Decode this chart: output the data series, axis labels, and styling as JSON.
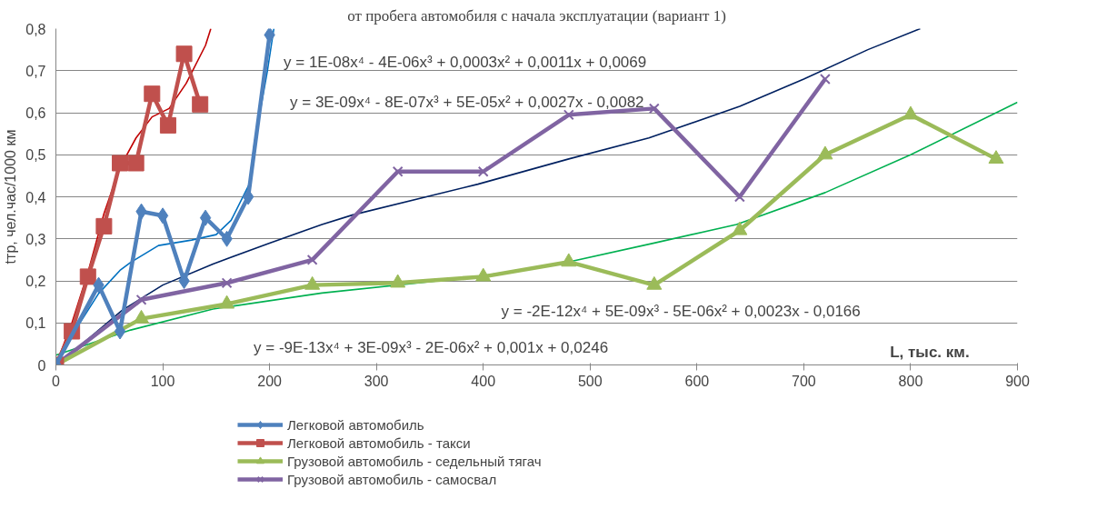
{
  "chart_data": {
    "type": "line",
    "title": "от пробега автомобиля с начала эксплуатации (вариант 1)",
    "xlabel": "L, тыс. км.",
    "ylabel": "tтр, чел.час/1000 км",
    "xlim": [
      0,
      900
    ],
    "xticks": [
      0,
      100,
      200,
      300,
      400,
      500,
      600,
      700,
      800,
      900
    ],
    "ylim": [
      0,
      0.8
    ],
    "yticks": [
      {
        "value": 0,
        "label": "0"
      },
      {
        "value": 0.1,
        "label": "0,1"
      },
      {
        "value": 0.2,
        "label": "0,2"
      },
      {
        "value": 0.3,
        "label": "0,3"
      },
      {
        "value": 0.4,
        "label": "0,4"
      },
      {
        "value": 0.5,
        "label": "0,5"
      },
      {
        "value": 0.6,
        "label": "0,6"
      },
      {
        "value": 0.7,
        "label": "0,7"
      },
      {
        "value": 0.8,
        "label": "0,8"
      }
    ],
    "grid": "y",
    "legend": "bottom",
    "series": [
      {
        "name": "Легковой автомобиль",
        "color": "#4f81bd",
        "marker": "diamond",
        "x": [
          0,
          40,
          60,
          80,
          100,
          120,
          140,
          160,
          180,
          200
        ],
        "values": [
          0,
          0.19,
          0.08,
          0.365,
          0.355,
          0.2,
          0.35,
          0.3,
          0.4,
          0.785
        ]
      },
      {
        "name": "Легковой автомобиль - такси",
        "color": "#c0504d",
        "marker": "square",
        "x": [
          0,
          15,
          30,
          45,
          60,
          75,
          90,
          105,
          120,
          135
        ],
        "values": [
          0,
          0.08,
          0.21,
          0.33,
          0.48,
          0.48,
          0.645,
          0.57,
          0.74,
          0.62
        ]
      },
      {
        "name": "Грузовой автомобиль - седельный тягач",
        "color": "#9bbb59",
        "marker": "triangle",
        "x": [
          0,
          80,
          160,
          240,
          320,
          400,
          480,
          560,
          640,
          720,
          800,
          880
        ],
        "values": [
          0,
          0.11,
          0.145,
          0.19,
          0.195,
          0.21,
          0.245,
          0.19,
          0.32,
          0.5,
          0.595,
          0.49
        ]
      },
      {
        "name": "Грузовой автомобиль - самосвал",
        "color": "#8064a2",
        "marker": "cross",
        "x": [
          0,
          80,
          160,
          240,
          320,
          400,
          480,
          560,
          640,
          720
        ],
        "values": [
          0,
          0.155,
          0.195,
          0.25,
          0.46,
          0.46,
          0.595,
          0.61,
          0.4,
          0.68
        ]
      },
      {
        "color": "#c00000",
        "marker": "none",
        "x": [
          0,
          15,
          30,
          45,
          60,
          75,
          90,
          106,
          122,
          140,
          145
        ],
        "values": [
          0,
          0.1,
          0.22,
          0.36,
          0.47,
          0.54,
          0.59,
          0.61,
          0.67,
          0.76,
          0.8
        ]
      },
      {
        "color": "#0070c0",
        "marker": "none",
        "x": [
          0,
          20,
          40,
          60,
          70,
          96,
          127,
          150,
          164,
          181,
          186,
          198,
          204
        ],
        "values": [
          0.01,
          0.09,
          0.17,
          0.225,
          0.244,
          0.284,
          0.297,
          0.31,
          0.344,
          0.43,
          0.53,
          0.7,
          0.8
        ]
      },
      {
        "color": "#002060",
        "marker": "none",
        "x": [
          0,
          20,
          62,
          100,
          147,
          200,
          249,
          278,
          395,
          480,
          555,
          640,
          700,
          760,
          809
        ],
        "values": [
          0,
          0.04,
          0.13,
          0.19,
          0.24,
          0.29,
          0.334,
          0.357,
          0.43,
          0.49,
          0.54,
          0.615,
          0.68,
          0.75,
          0.8
        ]
      },
      {
        "color": "#00b050",
        "marker": "none",
        "x": [
          0,
          70,
          147,
          249,
          395,
          473,
          560,
          637,
          720,
          800,
          900
        ],
        "values": [
          0.023,
          0.083,
          0.133,
          0.171,
          0.21,
          0.241,
          0.29,
          0.334,
          0.41,
          0.5,
          0.625
        ]
      }
    ],
    "annotations": [
      "y = 1E-08x⁴ - 4E-06x³ + 0,0003x² + 0,0011x + 0,0069",
      "y = 3E-09x⁴ - 8E-07x³ + 5E-05x² + 0,0027x - 0,0082",
      "y = -2E-12x⁴ + 5E-09x³ - 5E-06x² + 0,0023x - 0,0166",
      "y = -9E-13x⁴ + 3E-09x³ - 2E-06x² + 0,001x + 0,0246"
    ]
  }
}
